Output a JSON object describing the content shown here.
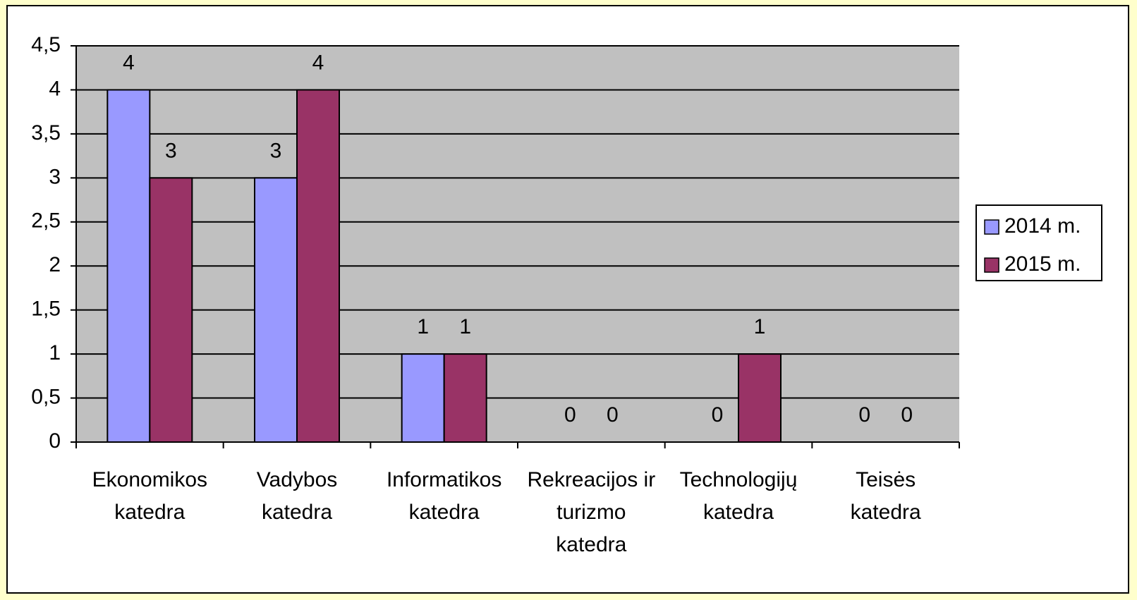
{
  "chart_data": {
    "type": "bar",
    "categories": [
      "Ekonomikos katedra",
      "Vadybos katedra",
      "Informatikos katedra",
      "Rekreacijos ir turizmo katedra",
      "Technologijų katedra",
      "Teisės katedra"
    ],
    "series": [
      {
        "name": "2014 m.",
        "color": "#9999ff",
        "values": [
          4,
          3,
          1,
          0,
          0,
          0
        ]
      },
      {
        "name": "2015 m.",
        "color": "#993366",
        "values": [
          3,
          4,
          1,
          0,
          1,
          0
        ]
      }
    ],
    "ylim": [
      0,
      4.5
    ],
    "yticks": [
      0,
      {
        "value": 0.5,
        "label": "0,5"
      },
      1,
      {
        "value": 1.5,
        "label": "1,5"
      },
      2,
      {
        "value": 2.5,
        "label": "2,5"
      },
      3,
      {
        "value": 3.5,
        "label": "3,5"
      },
      4,
      {
        "value": 4.5,
        "label": "4,5"
      }
    ],
    "grid": true,
    "legend": "right",
    "plot_background": "#c0c0c0"
  }
}
